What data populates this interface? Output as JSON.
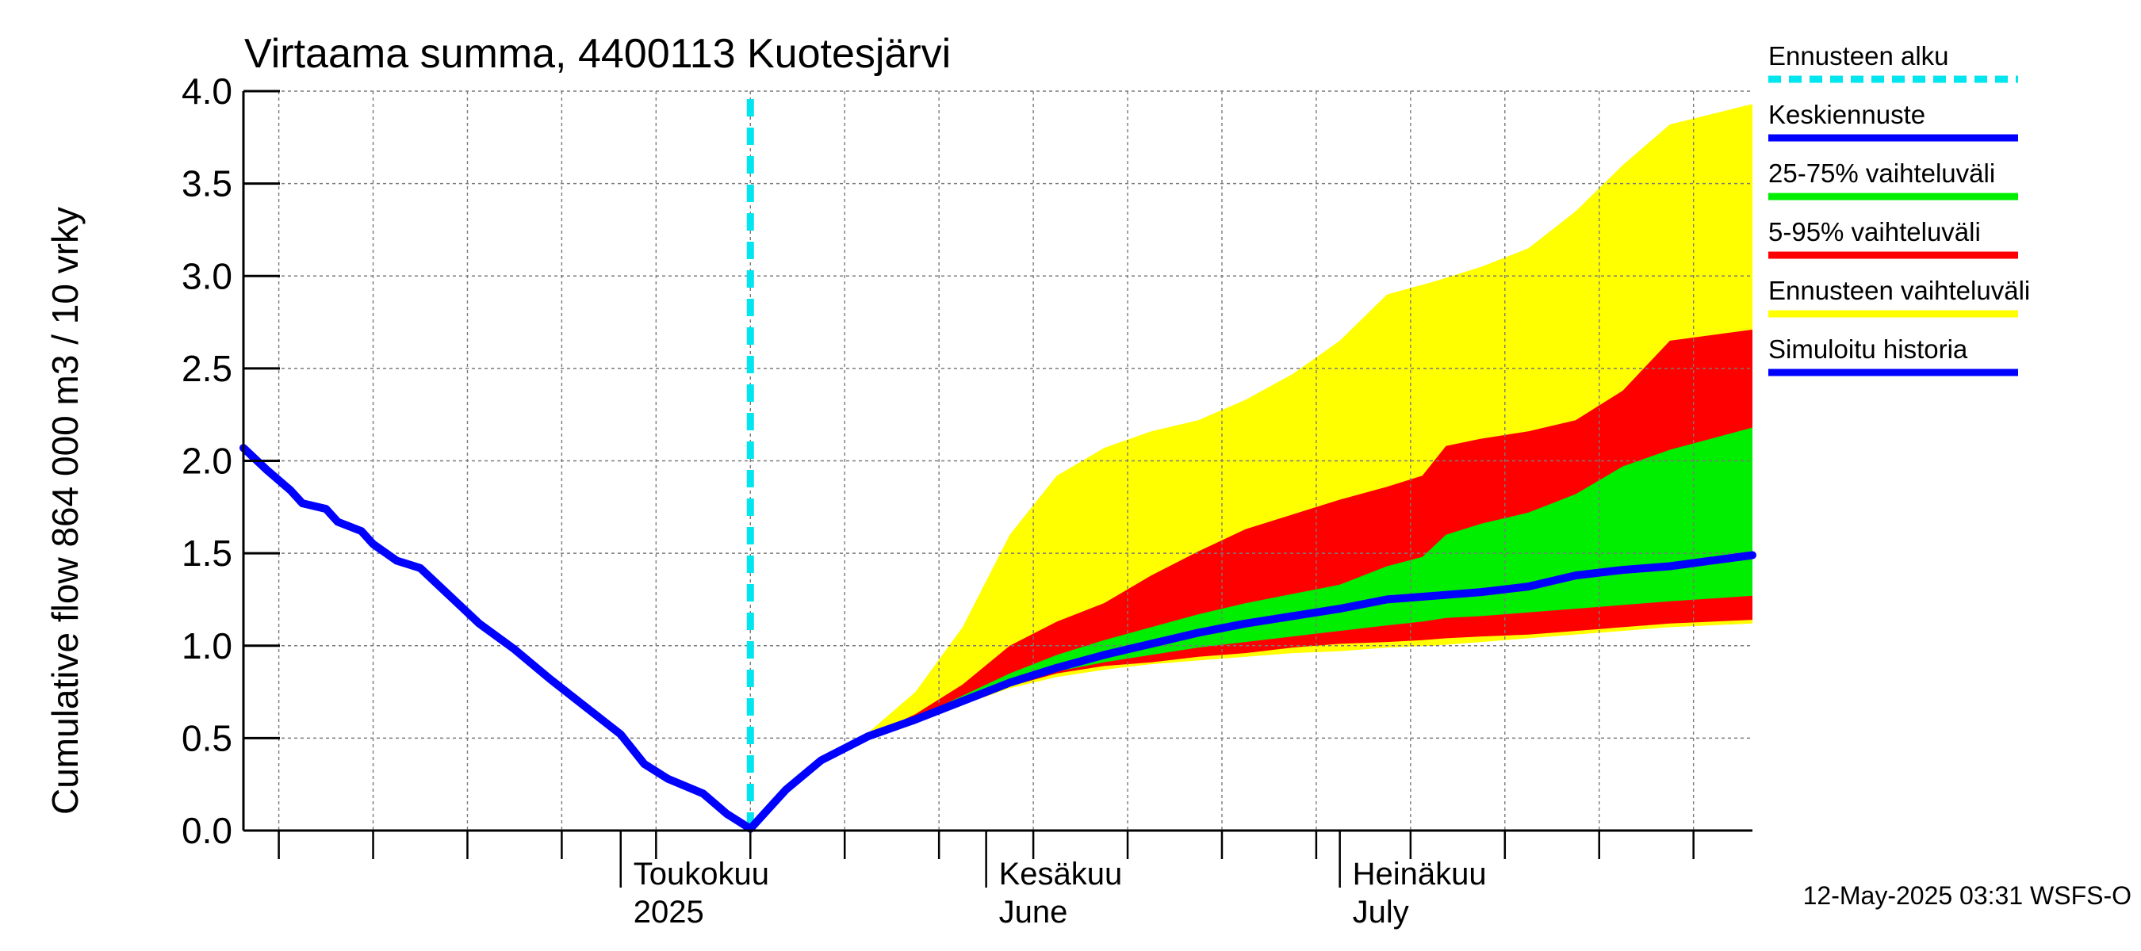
{
  "chart_data": {
    "type": "area",
    "title": "Virtaama summa, 4400113 Kuotesjärvi",
    "ylabel": "Cumulative flow    864 000 m3 / 10 vrky",
    "ylim": [
      0,
      4
    ],
    "yticks": [
      "0.0",
      "0.5",
      "1.0",
      "1.5",
      "2.0",
      "2.5",
      "3.0",
      "3.5",
      "4.0"
    ],
    "xlim": [
      "2025-03-30",
      "2025-08-05"
    ],
    "month_labels": [
      {
        "date": "2025-05-01",
        "line1": "Toukokuu",
        "line2": "2025"
      },
      {
        "date": "2025-06-01",
        "line1": "Kesäkuu",
        "line2": "June"
      },
      {
        "date": "2025-07-01",
        "line1": "Heinäkuu",
        "line2": "July"
      }
    ],
    "forecast_start": "2025-05-12",
    "legend": [
      {
        "label": "Ennusteen alku",
        "color": "#00e5ee",
        "dashed": true
      },
      {
        "label": "Keskiennuste",
        "color": "#0000ff",
        "dashed": false
      },
      {
        "label": "25-75% vaihteluväli",
        "color": "#00ee00",
        "dashed": false
      },
      {
        "label": "5-95% vaihteluväli",
        "color": "#ff0000",
        "dashed": false
      },
      {
        "label": "Ennusteen vaihteluväli",
        "color": "#ffff00",
        "dashed": false
      },
      {
        "label": "Simuloitu historia",
        "color": "#0000ff",
        "dashed": false
      }
    ],
    "series": [
      {
        "name": "Simuloitu historia",
        "color": "#0000ff",
        "x": [
          "2025-03-30",
          "2025-04-01",
          "2025-04-03",
          "2025-04-04",
          "2025-04-06",
          "2025-04-07",
          "2025-04-09",
          "2025-04-10",
          "2025-04-12",
          "2025-04-14",
          "2025-04-16",
          "2025-04-19",
          "2025-04-22",
          "2025-04-25",
          "2025-04-28",
          "2025-05-01",
          "2025-05-03",
          "2025-05-05",
          "2025-05-08",
          "2025-05-10",
          "2025-05-12"
        ],
        "y": [
          2.07,
          1.95,
          1.84,
          1.77,
          1.74,
          1.67,
          1.62,
          1.55,
          1.46,
          1.42,
          1.3,
          1.12,
          0.98,
          0.82,
          0.67,
          0.52,
          0.36,
          0.28,
          0.2,
          0.09,
          0.01
        ]
      },
      {
        "name": "Keskiennuste",
        "color": "#0000ff",
        "x": [
          "2025-05-12",
          "2025-05-15",
          "2025-05-18",
          "2025-05-22",
          "2025-05-26",
          "2025-05-30",
          "2025-06-03",
          "2025-06-07",
          "2025-06-11",
          "2025-06-15",
          "2025-06-19",
          "2025-06-23",
          "2025-06-27",
          "2025-07-01",
          "2025-07-05",
          "2025-07-09",
          "2025-07-13",
          "2025-07-17",
          "2025-07-21",
          "2025-07-25",
          "2025-07-29",
          "2025-08-05"
        ],
        "y": [
          0.01,
          0.22,
          0.38,
          0.51,
          0.6,
          0.7,
          0.8,
          0.88,
          0.95,
          1.01,
          1.07,
          1.12,
          1.16,
          1.2,
          1.25,
          1.27,
          1.29,
          1.32,
          1.38,
          1.41,
          1.43,
          1.49
        ]
      }
    ],
    "bands": [
      {
        "name": "Ennusteen vaihteluväli",
        "color": "#ffff00",
        "x": [
          "2025-05-18",
          "2025-05-22",
          "2025-05-26",
          "2025-05-30",
          "2025-06-03",
          "2025-06-07",
          "2025-06-11",
          "2025-06-15",
          "2025-06-19",
          "2025-06-23",
          "2025-06-27",
          "2025-07-01",
          "2025-07-05",
          "2025-07-09",
          "2025-07-13",
          "2025-07-17",
          "2025-07-21",
          "2025-07-25",
          "2025-07-29",
          "2025-08-05"
        ],
        "upper": [
          0.38,
          0.53,
          0.75,
          1.1,
          1.6,
          1.92,
          2.07,
          2.16,
          2.22,
          2.33,
          2.47,
          2.65,
          2.9,
          2.97,
          3.05,
          3.15,
          3.35,
          3.6,
          3.82,
          3.93
        ],
        "lower": [
          0.38,
          0.5,
          0.6,
          0.68,
          0.77,
          0.83,
          0.87,
          0.9,
          0.92,
          0.94,
          0.96,
          0.97,
          0.99,
          1.0,
          1.02,
          1.04,
          1.06,
          1.08,
          1.1,
          1.12
        ]
      },
      {
        "name": "5-95% vaihteluväli",
        "color": "#ff0000",
        "x": [
          "2025-05-18",
          "2025-05-22",
          "2025-05-26",
          "2025-05-30",
          "2025-06-03",
          "2025-06-07",
          "2025-06-11",
          "2025-06-15",
          "2025-06-19",
          "2025-06-23",
          "2025-06-27",
          "2025-07-01",
          "2025-07-05",
          "2025-07-08",
          "2025-07-10",
          "2025-07-13",
          "2025-07-17",
          "2025-07-21",
          "2025-07-25",
          "2025-07-29",
          "2025-08-05"
        ],
        "upper": [
          0.38,
          0.51,
          0.63,
          0.79,
          1.0,
          1.13,
          1.23,
          1.38,
          1.51,
          1.63,
          1.71,
          1.79,
          1.86,
          1.92,
          2.08,
          2.12,
          2.16,
          2.22,
          2.38,
          2.65,
          2.71
        ],
        "lower": [
          0.38,
          0.51,
          0.6,
          0.7,
          0.78,
          0.85,
          0.89,
          0.91,
          0.94,
          0.96,
          0.99,
          1.01,
          1.02,
          1.03,
          1.04,
          1.05,
          1.06,
          1.08,
          1.1,
          1.12,
          1.14
        ]
      },
      {
        "name": "25-75% vaihteluväli",
        "color": "#00ee00",
        "x": [
          "2025-05-18",
          "2025-05-22",
          "2025-05-26",
          "2025-05-30",
          "2025-06-03",
          "2025-06-07",
          "2025-06-11",
          "2025-06-15",
          "2025-06-19",
          "2025-06-23",
          "2025-06-27",
          "2025-07-01",
          "2025-07-05",
          "2025-07-08",
          "2025-07-10",
          "2025-07-13",
          "2025-07-17",
          "2025-07-21",
          "2025-07-25",
          "2025-07-29",
          "2025-08-05"
        ],
        "upper": [
          0.38,
          0.51,
          0.61,
          0.73,
          0.85,
          0.95,
          1.03,
          1.1,
          1.17,
          1.23,
          1.28,
          1.33,
          1.43,
          1.48,
          1.6,
          1.66,
          1.72,
          1.82,
          1.97,
          2.06,
          2.18
        ],
        "lower": [
          0.38,
          0.51,
          0.6,
          0.71,
          0.8,
          0.86,
          0.91,
          0.95,
          0.99,
          1.02,
          1.05,
          1.08,
          1.11,
          1.13,
          1.15,
          1.16,
          1.18,
          1.2,
          1.22,
          1.24,
          1.27
        ]
      }
    ]
  },
  "footer": "12-May-2025 03:31 WSFS-O"
}
